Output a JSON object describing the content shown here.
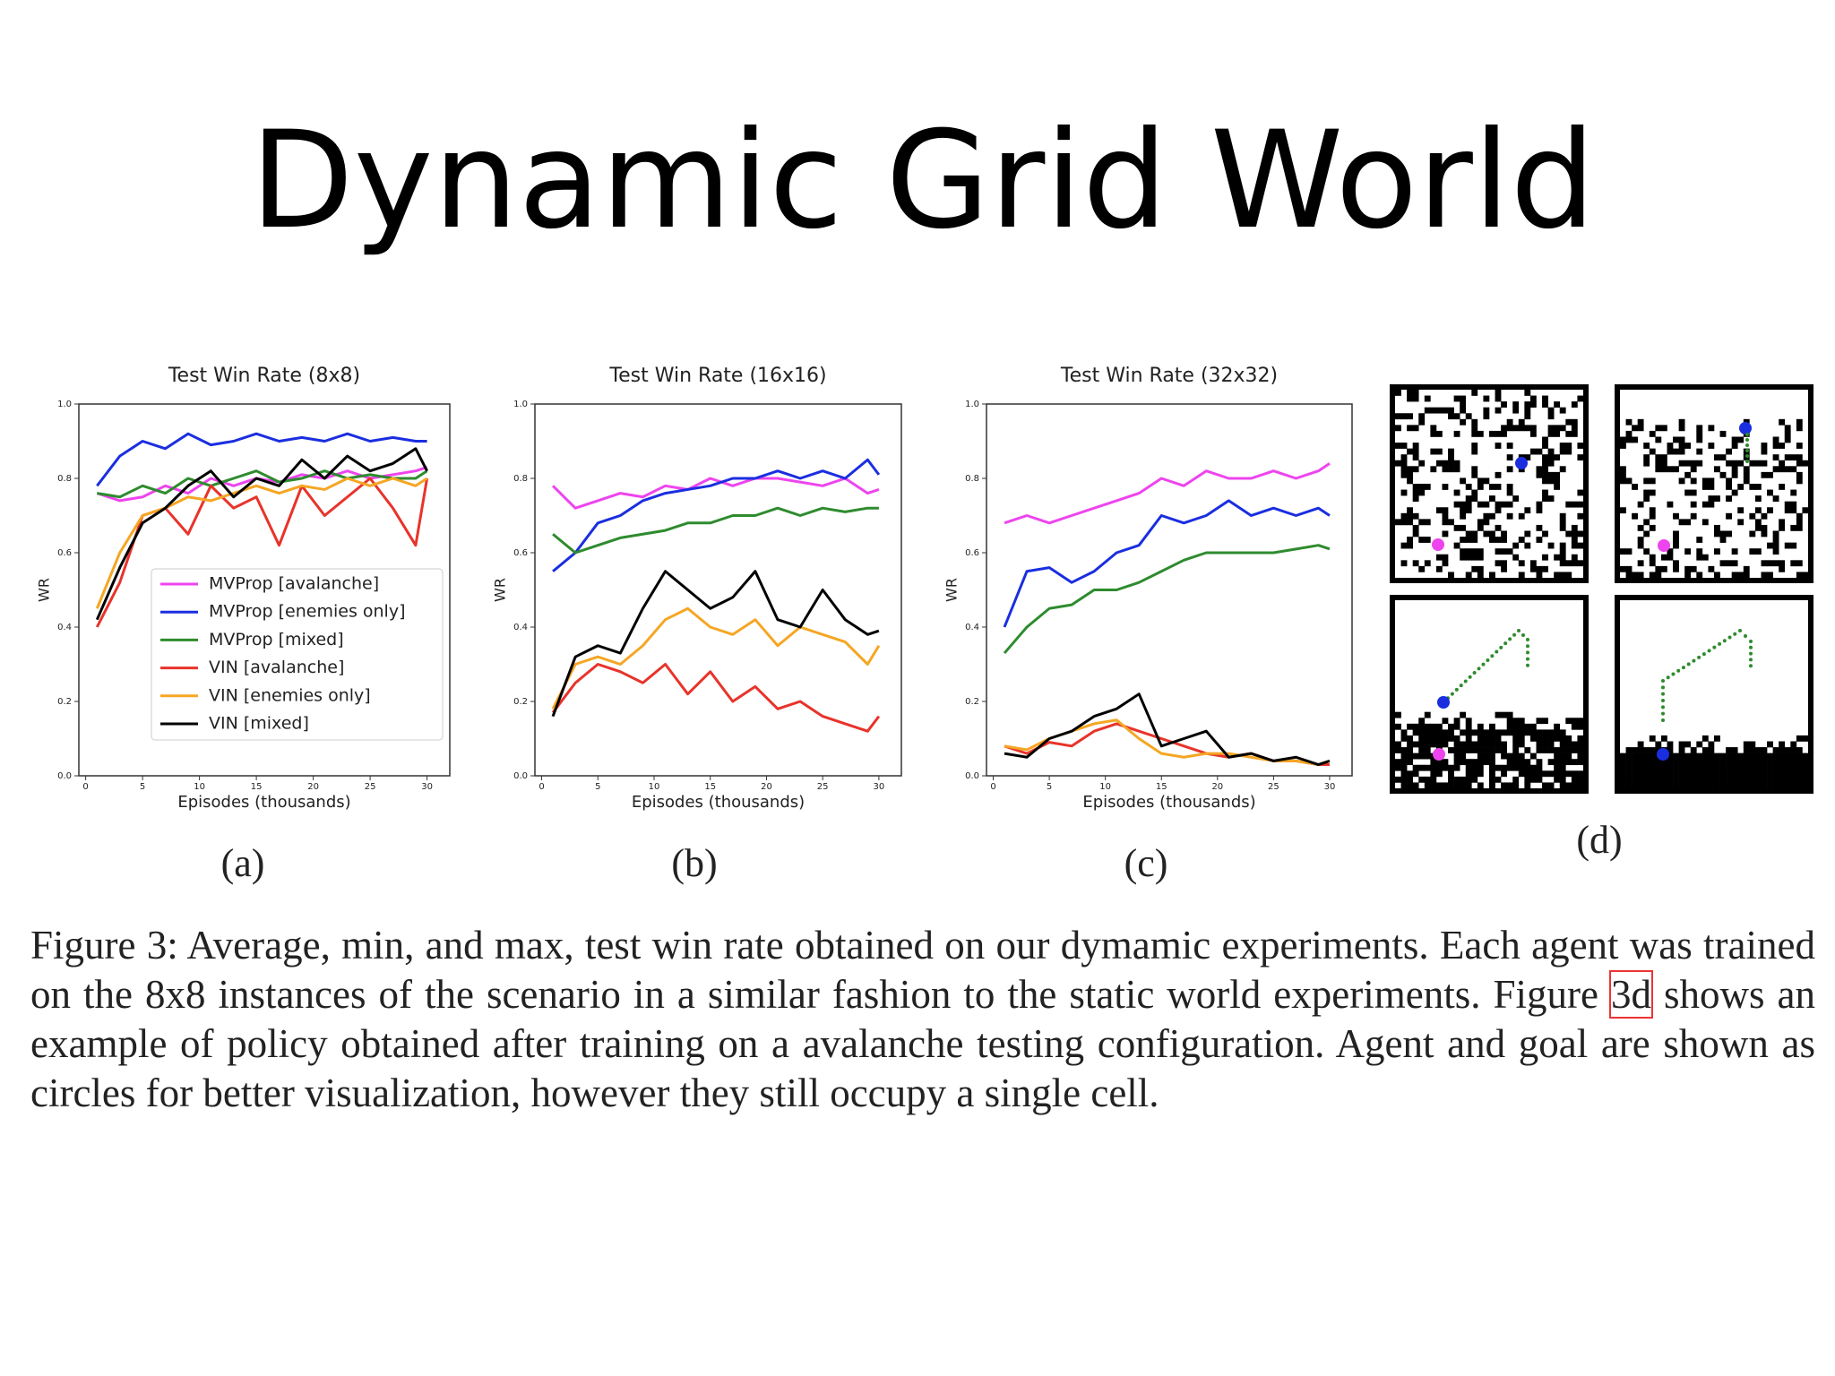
{
  "title": "Dynamic Grid World",
  "panels": [
    "(a)",
    "(b)",
    "(c)",
    "(d)"
  ],
  "caption": {
    "before": "Figure 3:  Average, min, and max, test win rate obtained on our dymamic experiments. Each agent was trained on the 8x8 instances of the scenario in a similar fashion to the static world experiments. Figure ",
    "ref": "3d",
    "after": " shows an example of policy obtained after training on a avalanche testing configuration. Agent and goal are shown as circles for better visualization, however they still occupy a single cell."
  },
  "chart_data": [
    {
      "type": "line",
      "title": "Test Win Rate (8x8)",
      "x_label": "Episodes (thousands)",
      "y_label": "WR",
      "x": [
        1,
        3,
        5,
        7,
        9,
        11,
        13,
        15,
        17,
        19,
        21,
        23,
        25,
        27,
        29,
        30
      ],
      "xlim": [
        -0.6,
        32
      ],
      "xticks": [
        0,
        5,
        10,
        15,
        20,
        25,
        30
      ],
      "ylim": [
        0,
        1
      ],
      "yticks": [
        {
          "value": 0,
          "label": "0.0"
        },
        0.2,
        0.4,
        0.6,
        0.8,
        {
          "value": 1,
          "label": "1.0"
        }
      ],
      "legend": "lower right",
      "series": [
        {
          "name": "MVProp [avalanche]",
          "color": "#ee44ee",
          "values": [
            0.76,
            0.74,
            0.75,
            0.78,
            0.76,
            0.8,
            0.78,
            0.8,
            0.79,
            0.81,
            0.8,
            0.82,
            0.8,
            0.81,
            0.82,
            0.83
          ]
        },
        {
          "name": "MVProp [enemies only]",
          "color": "#1a2ee0",
          "values": [
            0.78,
            0.86,
            0.9,
            0.88,
            0.92,
            0.89,
            0.9,
            0.92,
            0.9,
            0.91,
            0.9,
            0.92,
            0.9,
            0.91,
            0.9,
            0.9
          ]
        },
        {
          "name": "MVProp [mixed]",
          "color": "#2e8b2e",
          "values": [
            0.76,
            0.75,
            0.78,
            0.76,
            0.8,
            0.78,
            0.8,
            0.82,
            0.79,
            0.8,
            0.82,
            0.8,
            0.81,
            0.8,
            0.8,
            0.82
          ]
        },
        {
          "name": "VIN [avalanche]",
          "color": "#e8332a",
          "values": [
            0.4,
            0.52,
            0.7,
            0.72,
            0.65,
            0.78,
            0.72,
            0.75,
            0.62,
            0.78,
            0.7,
            0.75,
            0.8,
            0.72,
            0.62,
            0.8
          ]
        },
        {
          "name": "VIN [enemies only]",
          "color": "#f5a623",
          "values": [
            0.45,
            0.6,
            0.7,
            0.72,
            0.75,
            0.74,
            0.76,
            0.78,
            0.76,
            0.78,
            0.77,
            0.8,
            0.78,
            0.8,
            0.78,
            0.8
          ]
        },
        {
          "name": "VIN [mixed]",
          "color": "#000000",
          "values": [
            0.42,
            0.56,
            0.68,
            0.72,
            0.78,
            0.82,
            0.75,
            0.8,
            0.78,
            0.85,
            0.8,
            0.86,
            0.82,
            0.84,
            0.88,
            0.82
          ]
        }
      ]
    },
    {
      "type": "line",
      "title": "Test Win Rate (16x16)",
      "x_label": "Episodes (thousands)",
      "y_label": "WR",
      "x": [
        1,
        3,
        5,
        7,
        9,
        11,
        13,
        15,
        17,
        19,
        21,
        23,
        25,
        27,
        29,
        30
      ],
      "xlim": [
        -0.6,
        32
      ],
      "xticks": [
        0,
        5,
        10,
        15,
        20,
        25,
        30
      ],
      "ylim": [
        0,
        1
      ],
      "yticks": [
        {
          "value": 0,
          "label": "0.0"
        },
        0.2,
        0.4,
        0.6,
        0.8,
        {
          "value": 1,
          "label": "1.0"
        }
      ],
      "series": [
        {
          "color": "#ee44ee",
          "values": [
            0.78,
            0.72,
            0.74,
            0.76,
            0.75,
            0.78,
            0.77,
            0.8,
            0.78,
            0.8,
            0.8,
            0.79,
            0.78,
            0.8,
            0.76,
            0.77
          ]
        },
        {
          "color": "#1a2ee0",
          "values": [
            0.55,
            0.6,
            0.68,
            0.7,
            0.74,
            0.76,
            0.77,
            0.78,
            0.8,
            0.8,
            0.82,
            0.8,
            0.82,
            0.8,
            0.85,
            0.81
          ]
        },
        {
          "color": "#2e8b2e",
          "values": [
            0.65,
            0.6,
            0.62,
            0.64,
            0.65,
            0.66,
            0.68,
            0.68,
            0.7,
            0.7,
            0.72,
            0.7,
            0.72,
            0.71,
            0.72,
            0.72
          ]
        },
        {
          "color": "#e8332a",
          "values": [
            0.17,
            0.25,
            0.3,
            0.28,
            0.25,
            0.3,
            0.22,
            0.28,
            0.2,
            0.24,
            0.18,
            0.2,
            0.16,
            0.14,
            0.12,
            0.16
          ]
        },
        {
          "color": "#f5a623",
          "values": [
            0.18,
            0.3,
            0.32,
            0.3,
            0.35,
            0.42,
            0.45,
            0.4,
            0.38,
            0.42,
            0.35,
            0.4,
            0.38,
            0.36,
            0.3,
            0.35
          ]
        },
        {
          "color": "#000000",
          "values": [
            0.16,
            0.32,
            0.35,
            0.33,
            0.45,
            0.55,
            0.5,
            0.45,
            0.48,
            0.55,
            0.42,
            0.4,
            0.5,
            0.42,
            0.38,
            0.39
          ]
        }
      ]
    },
    {
      "type": "line",
      "title": "Test Win Rate (32x32)",
      "x_label": "Episodes (thousands)",
      "y_label": "WR",
      "x": [
        1,
        3,
        5,
        7,
        9,
        11,
        13,
        15,
        17,
        19,
        21,
        23,
        25,
        27,
        29,
        30
      ],
      "xlim": [
        -0.6,
        32
      ],
      "xticks": [
        0,
        5,
        10,
        15,
        20,
        25,
        30
      ],
      "ylim": [
        0,
        1
      ],
      "yticks": [
        {
          "value": 0,
          "label": "0.0"
        },
        0.2,
        0.4,
        0.6,
        0.8,
        {
          "value": 1,
          "label": "1.0"
        }
      ],
      "series": [
        {
          "color": "#ee44ee",
          "values": [
            0.68,
            0.7,
            0.68,
            0.7,
            0.72,
            0.74,
            0.76,
            0.8,
            0.78,
            0.82,
            0.8,
            0.8,
            0.82,
            0.8,
            0.82,
            0.84
          ]
        },
        {
          "color": "#1a2ee0",
          "values": [
            0.4,
            0.55,
            0.56,
            0.52,
            0.55,
            0.6,
            0.62,
            0.7,
            0.68,
            0.7,
            0.74,
            0.7,
            0.72,
            0.7,
            0.72,
            0.7
          ]
        },
        {
          "color": "#2e8b2e",
          "values": [
            0.33,
            0.4,
            0.45,
            0.46,
            0.5,
            0.5,
            0.52,
            0.55,
            0.58,
            0.6,
            0.6,
            0.6,
            0.6,
            0.61,
            0.62,
            0.61
          ]
        },
        {
          "color": "#e8332a",
          "values": [
            0.08,
            0.06,
            0.09,
            0.08,
            0.12,
            0.14,
            0.12,
            0.1,
            0.08,
            0.06,
            0.05,
            0.06,
            0.04,
            0.04,
            0.03,
            0.03
          ]
        },
        {
          "color": "#f5a623",
          "values": [
            0.08,
            0.07,
            0.1,
            0.12,
            0.14,
            0.15,
            0.1,
            0.06,
            0.05,
            0.06,
            0.06,
            0.05,
            0.04,
            0.04,
            0.03,
            0.04
          ]
        },
        {
          "color": "#000000",
          "values": [
            0.06,
            0.05,
            0.1,
            0.12,
            0.16,
            0.18,
            0.22,
            0.08,
            0.1,
            0.12,
            0.05,
            0.06,
            0.04,
            0.05,
            0.03,
            0.04
          ]
        }
      ]
    }
  ]
}
